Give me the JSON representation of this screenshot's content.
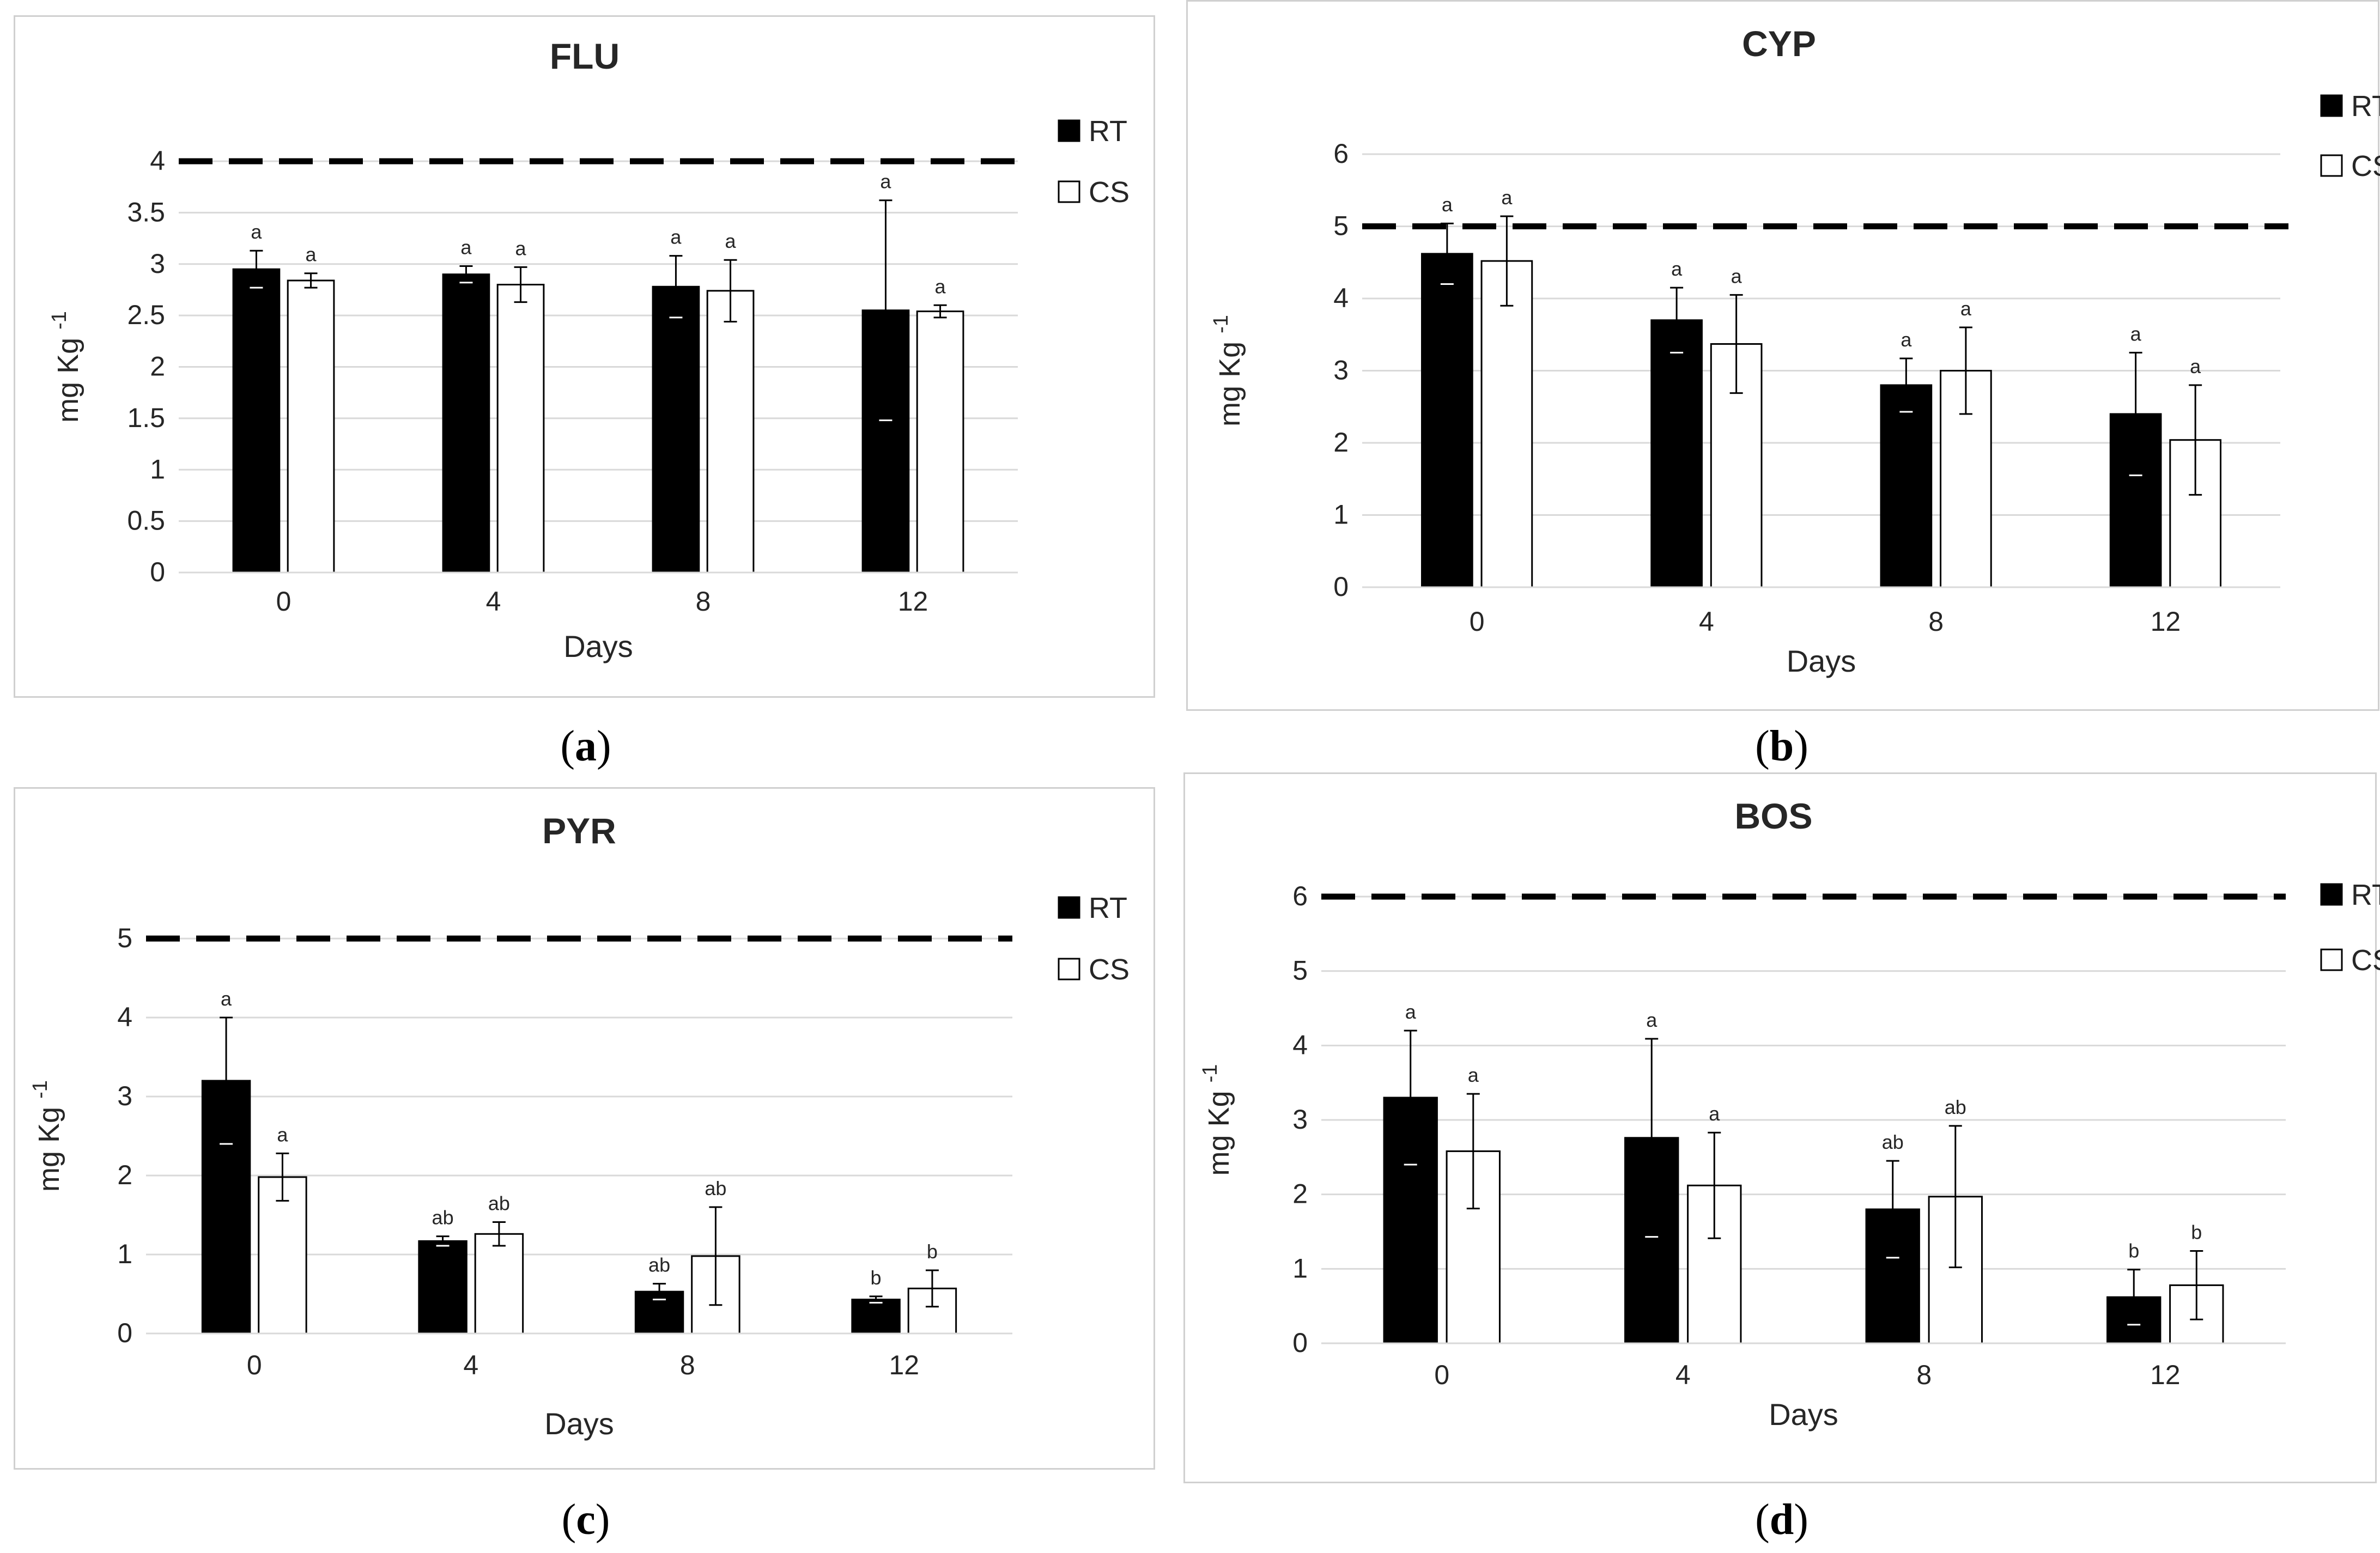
{
  "captions": {
    "a": "a",
    "b": "b",
    "c": "c",
    "d": "d"
  },
  "colors": {
    "rt": "#000000",
    "cs": "#ffffff",
    "grid": "#d9d9d9",
    "text": "#262626"
  },
  "chart_data": [
    {
      "id": "a",
      "type": "bar",
      "title": "FLU",
      "xlabel": "Days",
      "ylabel": "mg Kg -1",
      "categories": [
        "0",
        "4",
        "8",
        "12"
      ],
      "ylim": [
        0,
        4
      ],
      "yticks": [
        "0",
        "0.5",
        "1",
        "1.5",
        "2",
        "2.5",
        "3",
        "3.5",
        "4"
      ],
      "reference_line": 4,
      "series": [
        {
          "name": "RT",
          "values": [
            2.95,
            2.9,
            2.78,
            2.55
          ],
          "errors": [
            0.18,
            0.08,
            0.3,
            1.07
          ],
          "labels": [
            "a",
            "a",
            "a",
            "a"
          ]
        },
        {
          "name": "CS",
          "values": [
            2.84,
            2.8,
            2.74,
            2.54
          ],
          "errors": [
            0.07,
            0.17,
            0.3,
            0.06
          ],
          "labels": [
            "a",
            "a",
            "a",
            "a"
          ]
        }
      ]
    },
    {
      "id": "b",
      "type": "bar",
      "title": "CYP",
      "xlabel": "Days",
      "ylabel": "mg Kg -1",
      "categories": [
        "0",
        "4",
        "8",
        "12"
      ],
      "ylim": [
        0,
        6
      ],
      "yticks": [
        "0",
        "1",
        "2",
        "3",
        "4",
        "5",
        "6"
      ],
      "reference_line": 5,
      "series": [
        {
          "name": "RT",
          "values": [
            4.62,
            3.7,
            2.8,
            2.4
          ],
          "errors": [
            0.42,
            0.45,
            0.37,
            0.85
          ],
          "labels": [
            "a",
            "a",
            "a",
            "a"
          ]
        },
        {
          "name": "CS",
          "values": [
            4.52,
            3.37,
            3.0,
            2.04
          ],
          "errors": [
            0.62,
            0.68,
            0.6,
            0.76
          ],
          "labels": [
            "a",
            "a",
            "a",
            "a"
          ]
        }
      ]
    },
    {
      "id": "c",
      "type": "bar",
      "title": "PYR",
      "xlabel": "Days",
      "ylabel": "mg Kg -1",
      "categories": [
        "0",
        "4",
        "8",
        "12"
      ],
      "ylim": [
        0,
        5
      ],
      "yticks": [
        "0",
        "1",
        "2",
        "3",
        "4",
        "5"
      ],
      "reference_line": 5,
      "series": [
        {
          "name": "RT",
          "values": [
            3.2,
            1.17,
            0.53,
            0.43
          ],
          "errors": [
            0.8,
            0.06,
            0.1,
            0.04
          ],
          "labels": [
            "a",
            "ab",
            "ab",
            "b"
          ]
        },
        {
          "name": "CS",
          "values": [
            1.98,
            1.26,
            0.98,
            0.57
          ],
          "errors": [
            0.3,
            0.15,
            0.62,
            0.23
          ],
          "labels": [
            "a",
            "ab",
            "ab",
            "b"
          ]
        }
      ]
    },
    {
      "id": "d",
      "type": "bar",
      "title": "BOS",
      "xlabel": "Days",
      "ylabel": "mg Kg -1",
      "categories": [
        "0",
        "4",
        "8",
        "12"
      ],
      "ylim": [
        0,
        6
      ],
      "yticks": [
        "0",
        "1",
        "2",
        "3",
        "4",
        "5",
        "6"
      ],
      "reference_line": 6,
      "series": [
        {
          "name": "RT",
          "values": [
            3.3,
            2.76,
            1.8,
            0.62
          ],
          "errors": [
            0.9,
            1.33,
            0.65,
            0.37
          ],
          "labels": [
            "a",
            "a",
            "ab",
            "b"
          ]
        },
        {
          "name": "CS",
          "values": [
            2.58,
            2.12,
            1.97,
            0.78
          ],
          "errors": [
            0.77,
            0.71,
            0.95,
            0.46
          ],
          "labels": [
            "a",
            "a",
            "ab",
            "b"
          ]
        }
      ]
    }
  ]
}
